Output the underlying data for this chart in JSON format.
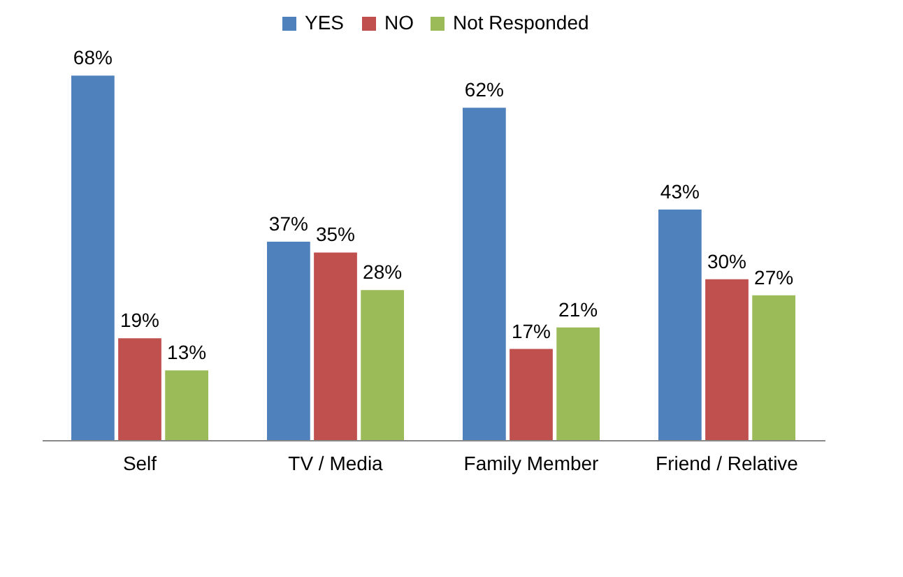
{
  "chart_data": {
    "type": "bar",
    "categories": [
      "Self",
      "TV / Media",
      "Family Member",
      "Friend / Relative"
    ],
    "legend": "top",
    "grid": false,
    "series": [
      {
        "name": "YES",
        "color": "#4f81bd",
        "values": [
          68,
          37,
          62,
          43
        ],
        "value_labels": [
          "68%",
          "37%",
          "62%",
          "43%"
        ]
      },
      {
        "name": "NO",
        "color": "#c0504d",
        "values": [
          19,
          35,
          17,
          30
        ],
        "value_labels": [
          "19%",
          "35%",
          "17%",
          "30%"
        ]
      },
      {
        "name": "Not Responded",
        "color": "#9bbb59",
        "values": [
          13,
          28,
          21,
          27
        ],
        "value_labels": [
          "13%",
          "28%",
          "21%",
          "27%"
        ]
      }
    ]
  }
}
